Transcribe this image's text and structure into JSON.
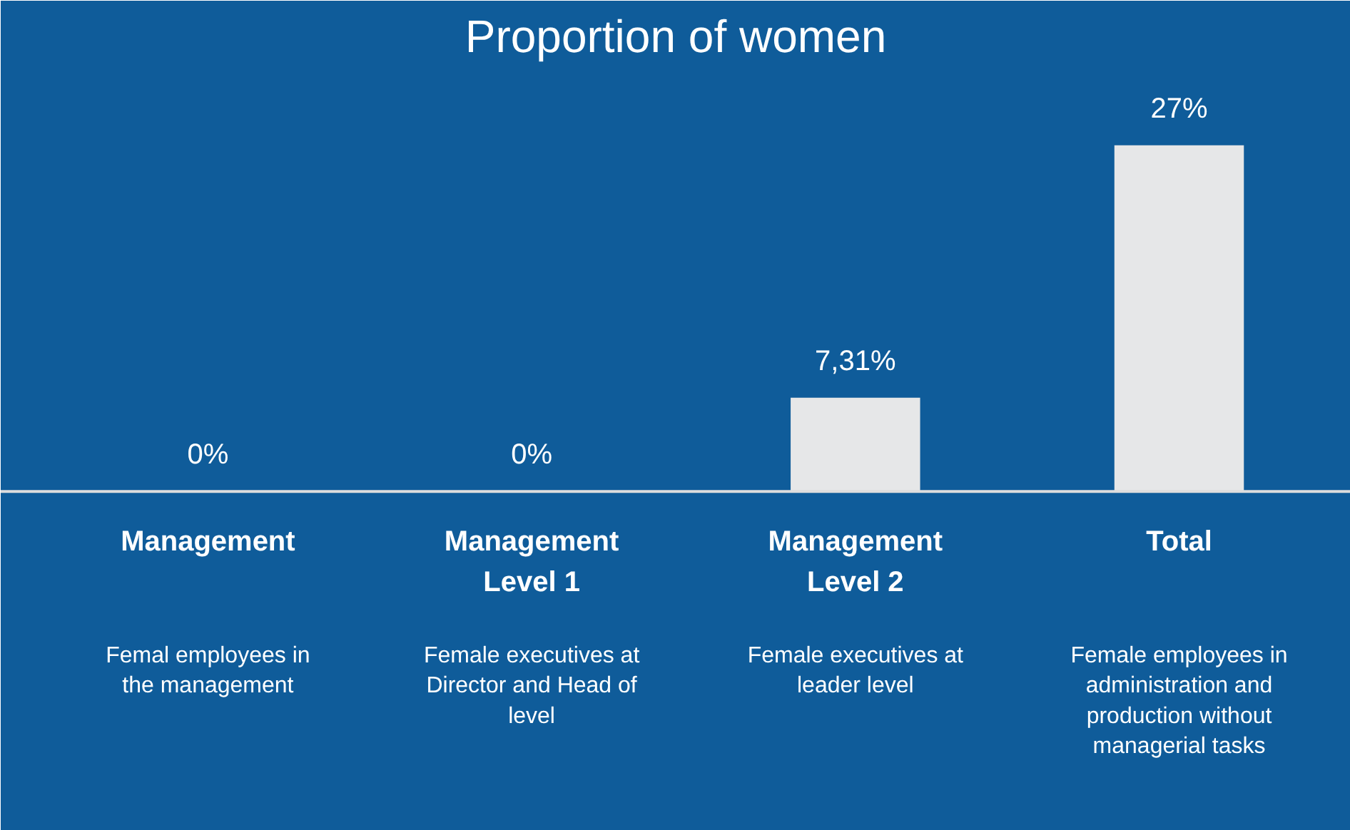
{
  "chart_data": {
    "type": "bar",
    "title": "Proportion of women",
    "categories": [
      "Management",
      "Management Level 1",
      "Management Level 2",
      "Total"
    ],
    "values": [
      0,
      0,
      7.31,
      27
    ],
    "value_labels": [
      "0%",
      "0%",
      "7,31%",
      "27%"
    ],
    "color": "#e6e7e8",
    "annotations": [
      "Femal employees in the management",
      "Female executives at Director and Head of level",
      "Female executives at leader level",
      "Female employees in administration and production without managerial tasks"
    ]
  }
}
